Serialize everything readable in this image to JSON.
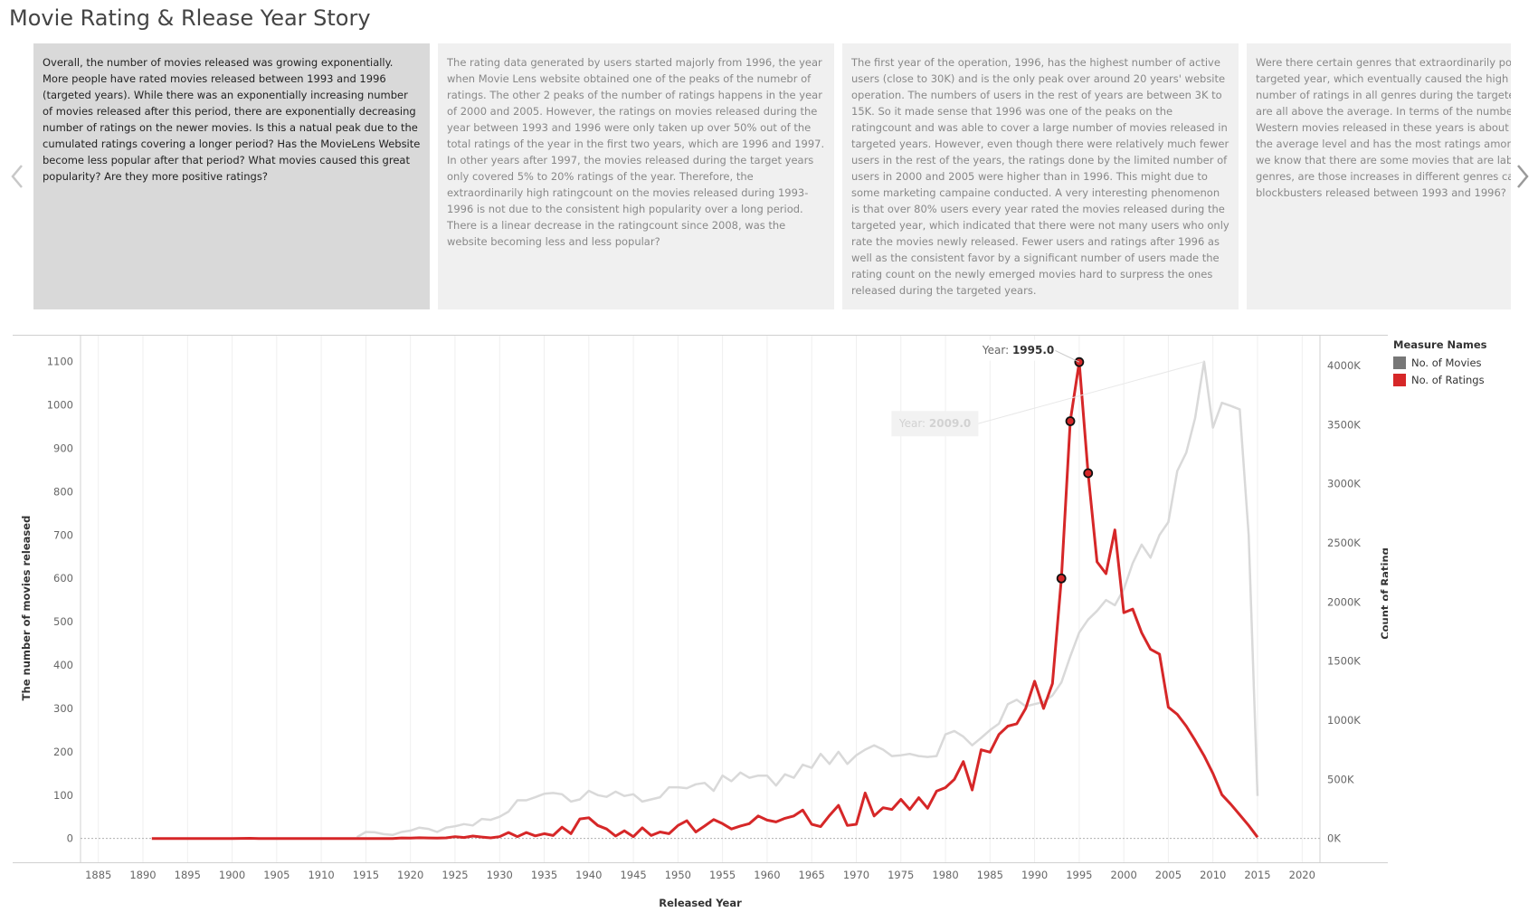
{
  "page": {
    "title": "Movie Rating & Rlease Year Story"
  },
  "story_points": [
    {
      "text": "Overall, the number of movies released was growing exponentially. More people have rated movies released between 1993 and 1996 (targeted years). While there was an exponentially increasing number of movies released after this period, there are exponentially decreasing number of ratings on the newer movies. Is this a natual peak due to the cumulated ratings covering a longer period? Has the MovieLens Website become less popular after that period? What movies caused this great popularity? Are they more positive ratings?"
    },
    {
      "text": "The rating data generated by users started majorly from 1996, the year when Movie Lens website obtained one of the peaks of the numebr of ratings. The other 2 peaks of the number of ratings happens in the year of 2000 and 2005. However, the ratings on movies released during the year between 1993 and 1996 were only taken up over 50% out of the total ratings of the year in the first two years, which are 1996 and 1997. In other years after 1997, the movies released during the target years only covered  5% to 20% ratings of the year. Therefore, the extraordinarily high ratingcount on the movies released during 1993-1996 is not due to the consistent high popularity over a long period. There is a linear decrease in the ratingcount since 2008, was the website becoming less and less popular?"
    },
    {
      "text": "The first year of the operation, 1996, has the highest number of active users (close to 30K) and is the only peak over around 20 years' website operation. The numbers of users in the rest of years are between 3K to 15K. So it made sense that 1996 was one of the peaks on the ratingcount and was able to cover a large number of movies released in targeted years. However, even though there were relatively much fewer users in the rest of the years, the ratings done by the limited number of users in 2000 and 2005 were higher than in 1996. This might due to some marketing campaine conducted. A very interesting phenomenon is that over 80% users every year rated the movies released during the targeted year, which indicated that there were not many users who only rate the movies newly released. Fewer users and ratings after 1996 as well as the consistent favor by a significant number of users made the rating count on the newly emerged movies hard to surpress the ones released during the targeted years."
    },
    {
      "text": "Were there certain genres that extraordinarily popular released in the targeted year, which eventually caused the high ratingcount? The number of ratings in all genres during the targeted years(1993-1996) are all above the average. In terms of the number of ratings on War and Western movies released in these years is about 4 to 6 times more than the average level and has the most ratings among all genres. However, we know that there are some movies that are labeled as multiple genres, are those increases in different genres caused by the same blockbusters released between 1993 and 1996?"
    }
  ],
  "legend": {
    "title": "Measure Names",
    "items": [
      {
        "label": "No. of Movies",
        "color": "#777777"
      },
      {
        "label": "No. of Ratings",
        "color": "#d62728"
      }
    ]
  },
  "chart_data": {
    "type": "line",
    "xlabel": "Released Year",
    "ylabel_left": "The number of movies released",
    "ylabel_right": "Count of Rating",
    "xlim": [
      1883,
      2022
    ],
    "ylim_left": [
      -55,
      1160
    ],
    "ylim_right": [
      -201667,
      4253333
    ],
    "x_ticks": [
      1885,
      1890,
      1895,
      1900,
      1905,
      1910,
      1915,
      1920,
      1925,
      1930,
      1935,
      1940,
      1945,
      1950,
      1955,
      1960,
      1965,
      1970,
      1975,
      1980,
      1985,
      1990,
      1995,
      2000,
      2005,
      2010,
      2015,
      2020
    ],
    "y_ticks_left": [
      0,
      100,
      200,
      300,
      400,
      500,
      600,
      700,
      800,
      900,
      1000,
      1100
    ],
    "y_ticks_right": [
      {
        "value": 0,
        "label": "0K"
      },
      {
        "value": 500000,
        "label": "500K"
      },
      {
        "value": 1000000,
        "label": "1000K"
      },
      {
        "value": 1500000,
        "label": "1500K"
      },
      {
        "value": 2000000,
        "label": "2000K"
      },
      {
        "value": 2500000,
        "label": "2500K"
      },
      {
        "value": 3000000,
        "label": "3000K"
      },
      {
        "value": 3500000,
        "label": "3500K"
      },
      {
        "value": 4000000,
        "label": "4000K"
      }
    ],
    "grid": true,
    "series": [
      {
        "name": "No. of Movies",
        "axis": "left",
        "color": "#d9d9d9",
        "points": [
          [
            1914,
            3
          ],
          [
            1915,
            15
          ],
          [
            1916,
            14
          ],
          [
            1917,
            10
          ],
          [
            1918,
            8
          ],
          [
            1919,
            15
          ],
          [
            1920,
            18
          ],
          [
            1921,
            25
          ],
          [
            1922,
            22
          ],
          [
            1923,
            15
          ],
          [
            1924,
            25
          ],
          [
            1925,
            28
          ],
          [
            1926,
            33
          ],
          [
            1927,
            30
          ],
          [
            1928,
            45
          ],
          [
            1929,
            43
          ],
          [
            1930,
            50
          ],
          [
            1931,
            62
          ],
          [
            1932,
            88
          ],
          [
            1933,
            88
          ],
          [
            1934,
            95
          ],
          [
            1935,
            103
          ],
          [
            1936,
            105
          ],
          [
            1937,
            102
          ],
          [
            1938,
            85
          ],
          [
            1939,
            90
          ],
          [
            1940,
            110
          ],
          [
            1941,
            100
          ],
          [
            1942,
            96
          ],
          [
            1943,
            108
          ],
          [
            1944,
            98
          ],
          [
            1945,
            102
          ],
          [
            1946,
            85
          ],
          [
            1947,
            90
          ],
          [
            1948,
            95
          ],
          [
            1949,
            118
          ],
          [
            1950,
            118
          ],
          [
            1951,
            116
          ],
          [
            1952,
            125
          ],
          [
            1953,
            128
          ],
          [
            1954,
            110
          ],
          [
            1955,
            145
          ],
          [
            1956,
            132
          ],
          [
            1957,
            152
          ],
          [
            1958,
            140
          ],
          [
            1959,
            145
          ],
          [
            1960,
            145
          ],
          [
            1961,
            122
          ],
          [
            1962,
            148
          ],
          [
            1963,
            140
          ],
          [
            1964,
            170
          ],
          [
            1965,
            163
          ],
          [
            1966,
            195
          ],
          [
            1967,
            172
          ],
          [
            1968,
            200
          ],
          [
            1969,
            172
          ],
          [
            1970,
            192
          ],
          [
            1971,
            205
          ],
          [
            1972,
            215
          ],
          [
            1973,
            205
          ],
          [
            1974,
            190
          ],
          [
            1975,
            192
          ],
          [
            1976,
            195
          ],
          [
            1977,
            190
          ],
          [
            1978,
            188
          ],
          [
            1979,
            190
          ],
          [
            1980,
            240
          ],
          [
            1981,
            248
          ],
          [
            1982,
            235
          ],
          [
            1983,
            215
          ],
          [
            1984,
            232
          ],
          [
            1985,
            250
          ],
          [
            1986,
            265
          ],
          [
            1987,
            310
          ],
          [
            1988,
            320
          ],
          [
            1989,
            305
          ],
          [
            1990,
            310
          ],
          [
            1991,
            315
          ],
          [
            1992,
            330
          ],
          [
            1993,
            360
          ],
          [
            1994,
            420
          ],
          [
            1995,
            475
          ],
          [
            1996,
            505
          ],
          [
            1997,
            525
          ],
          [
            1998,
            550
          ],
          [
            1999,
            538
          ],
          [
            2000,
            575
          ],
          [
            2001,
            635
          ],
          [
            2002,
            678
          ],
          [
            2003,
            648
          ],
          [
            2004,
            700
          ],
          [
            2005,
            730
          ],
          [
            2006,
            848
          ],
          [
            2007,
            890
          ],
          [
            2008,
            970
          ],
          [
            2009,
            1100
          ],
          [
            2010,
            948
          ],
          [
            2011,
            1005
          ],
          [
            2012,
            998
          ],
          [
            2013,
            990
          ],
          [
            2014,
            700
          ],
          [
            2015,
            98
          ]
        ]
      },
      {
        "name": "No. of Ratings",
        "axis": "right",
        "color": "#d62728",
        "points": [
          [
            1891,
            0
          ],
          [
            1893,
            0
          ],
          [
            1894,
            0
          ],
          [
            1895,
            0
          ],
          [
            1896,
            0
          ],
          [
            1898,
            0
          ],
          [
            1899,
            0
          ],
          [
            1900,
            0
          ],
          [
            1902,
            1000
          ],
          [
            1903,
            0
          ],
          [
            1905,
            0
          ],
          [
            1908,
            0
          ],
          [
            1910,
            0
          ],
          [
            1912,
            0
          ],
          [
            1914,
            0
          ],
          [
            1916,
            0
          ],
          [
            1918,
            0
          ],
          [
            1919,
            4000
          ],
          [
            1920,
            3000
          ],
          [
            1921,
            6000
          ],
          [
            1922,
            4000
          ],
          [
            1923,
            3000
          ],
          [
            1924,
            5000
          ],
          [
            1925,
            15000
          ],
          [
            1926,
            8000
          ],
          [
            1927,
            20000
          ],
          [
            1928,
            12000
          ],
          [
            1929,
            5000
          ],
          [
            1930,
            15000
          ],
          [
            1931,
            50000
          ],
          [
            1932,
            15000
          ],
          [
            1933,
            50000
          ],
          [
            1934,
            22000
          ],
          [
            1935,
            40000
          ],
          [
            1936,
            25000
          ],
          [
            1937,
            95000
          ],
          [
            1938,
            40000
          ],
          [
            1939,
            165000
          ],
          [
            1940,
            175000
          ],
          [
            1941,
            110000
          ],
          [
            1942,
            80000
          ],
          [
            1943,
            20000
          ],
          [
            1944,
            65000
          ],
          [
            1945,
            15000
          ],
          [
            1946,
            90000
          ],
          [
            1947,
            25000
          ],
          [
            1948,
            55000
          ],
          [
            1949,
            40000
          ],
          [
            1950,
            110000
          ],
          [
            1951,
            150000
          ],
          [
            1952,
            55000
          ],
          [
            1953,
            105000
          ],
          [
            1954,
            160000
          ],
          [
            1955,
            125000
          ],
          [
            1956,
            80000
          ],
          [
            1957,
            105000
          ],
          [
            1958,
            125000
          ],
          [
            1959,
            190000
          ],
          [
            1960,
            155000
          ],
          [
            1961,
            140000
          ],
          [
            1962,
            170000
          ],
          [
            1963,
            190000
          ],
          [
            1964,
            240000
          ],
          [
            1965,
            120000
          ],
          [
            1966,
            100000
          ],
          [
            1967,
            195000
          ],
          [
            1968,
            280000
          ],
          [
            1969,
            110000
          ],
          [
            1970,
            120000
          ],
          [
            1971,
            385000
          ],
          [
            1972,
            190000
          ],
          [
            1973,
            260000
          ],
          [
            1974,
            245000
          ],
          [
            1975,
            330000
          ],
          [
            1976,
            245000
          ],
          [
            1977,
            345000
          ],
          [
            1978,
            255000
          ],
          [
            1979,
            400000
          ],
          [
            1980,
            430000
          ],
          [
            1981,
            500000
          ],
          [
            1982,
            650000
          ],
          [
            1983,
            410000
          ],
          [
            1984,
            750000
          ],
          [
            1985,
            730000
          ],
          [
            1986,
            880000
          ],
          [
            1987,
            950000
          ],
          [
            1988,
            970000
          ],
          [
            1989,
            1100000
          ],
          [
            1990,
            1330000
          ],
          [
            1991,
            1100000
          ],
          [
            1992,
            1310000
          ],
          [
            1993,
            2200000
          ],
          [
            1994,
            3530000
          ],
          [
            1995,
            4030000
          ],
          [
            1996,
            3090000
          ],
          [
            1997,
            2340000
          ],
          [
            1998,
            2240000
          ],
          [
            1999,
            2610000
          ],
          [
            2000,
            1910000
          ],
          [
            2001,
            1940000
          ],
          [
            2002,
            1740000
          ],
          [
            2003,
            1600000
          ],
          [
            2004,
            1560000
          ],
          [
            2005,
            1110000
          ],
          [
            2006,
            1050000
          ],
          [
            2007,
            950000
          ],
          [
            2008,
            830000
          ],
          [
            2009,
            700000
          ],
          [
            2010,
            550000
          ],
          [
            2011,
            370000
          ],
          [
            2012,
            290000
          ],
          [
            2013,
            200000
          ],
          [
            2014,
            110000
          ],
          [
            2015,
            10000
          ]
        ],
        "highlighted_years": [
          1993,
          1994,
          1995,
          1996
        ]
      }
    ],
    "tooltips": [
      {
        "label": "Year:",
        "value": "1995.0",
        "series": "No. of Ratings",
        "x": 1995,
        "faded": false
      },
      {
        "label": "Year:",
        "value": "2009.0",
        "series": "No. of Movies",
        "x": 2009,
        "faded": true
      }
    ]
  }
}
